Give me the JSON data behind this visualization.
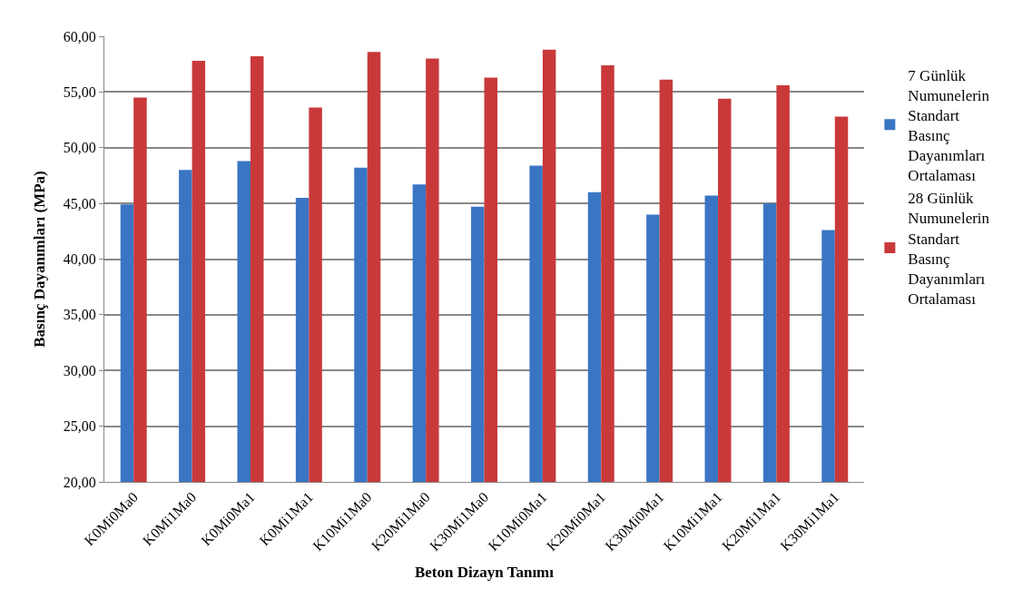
{
  "chart_data": {
    "type": "bar",
    "xlabel": "Beton Dizayn Tanımı",
    "ylabel": "Basınç Dayanımları (MPa)",
    "categories": [
      "K0Mi0Ma0",
      "K0Mi1Ma0",
      "K0Mi0Ma1",
      "K0Mi1Ma1",
      "K10Mi1Ma0",
      "K20Mi1Ma0",
      "K30Mi1Ma0",
      "K10Mi0Ma1",
      "K20Mi0Ma1",
      "K30Mi0Ma1",
      "K10Mi1Ma1",
      "K20Mi1Ma1",
      "K30Mi1Ma1"
    ],
    "series": [
      {
        "name": "7 Günlük Numunelerin Standart Basınç Dayanımları Ortalaması",
        "color": "#3a75c4",
        "values": [
          44.9,
          48.0,
          48.8,
          45.5,
          48.2,
          46.7,
          44.7,
          48.4,
          46.0,
          44.0,
          45.7,
          45.0,
          42.6
        ]
      },
      {
        "name": "28 Günlük Numunelerin Standart Basınç Dayanımları Ortalaması",
        "color": "#c9393a",
        "values": [
          54.5,
          57.8,
          58.2,
          53.6,
          58.6,
          58.0,
          56.3,
          58.8,
          57.4,
          56.1,
          54.4,
          55.6,
          52.8
        ]
      }
    ],
    "ylim": [
      20,
      60
    ],
    "yticks": [
      {
        "value": 20,
        "label": "20,00"
      },
      {
        "value": 25,
        "label": "25,00"
      },
      {
        "value": 30,
        "label": "30,00"
      },
      {
        "value": 35,
        "label": "35,00"
      },
      {
        "value": 40,
        "label": "40,00"
      },
      {
        "value": 45,
        "label": "45,00"
      },
      {
        "value": 50,
        "label": "50,00"
      },
      {
        "value": 55,
        "label": "55,00"
      },
      {
        "value": 60,
        "label": "60,00"
      }
    ],
    "grid": "y",
    "legend": "right"
  }
}
